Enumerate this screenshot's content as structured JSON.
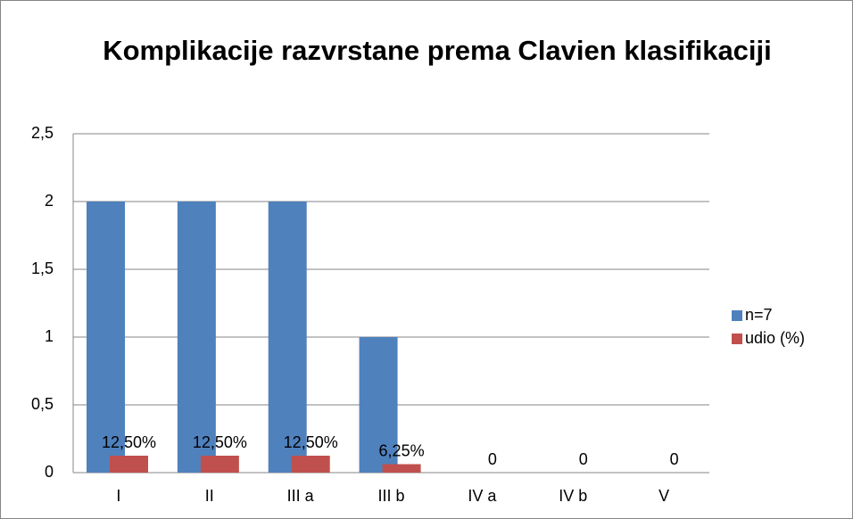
{
  "chart_data": {
    "type": "bar",
    "title": "Komplikacije razvrstane prema Clavien klasifikaciji",
    "categories": [
      "I",
      "II",
      "III a",
      "III b",
      "IV a",
      "IV b",
      "V"
    ],
    "series": [
      {
        "name": "n=7",
        "color": "#4f81bd",
        "values": [
          2,
          2,
          2,
          1,
          0,
          0,
          0
        ]
      },
      {
        "name": "udio (%)",
        "color": "#c0504d",
        "values": [
          0.125,
          0.125,
          0.125,
          0.0625,
          0,
          0,
          0
        ],
        "value_labels": [
          "12,50%",
          "12,50%",
          "12,50%",
          "6,25%",
          "0",
          "0",
          "0"
        ]
      }
    ],
    "ylim": [
      0,
      2.5
    ],
    "yticks": [
      0,
      {
        "value": 0.5,
        "label": "0,5"
      },
      1,
      {
        "value": 1.5,
        "label": "1,5"
      },
      2,
      {
        "value": 2.5,
        "label": "2,5"
      }
    ],
    "grid": true,
    "legend": "right"
  }
}
